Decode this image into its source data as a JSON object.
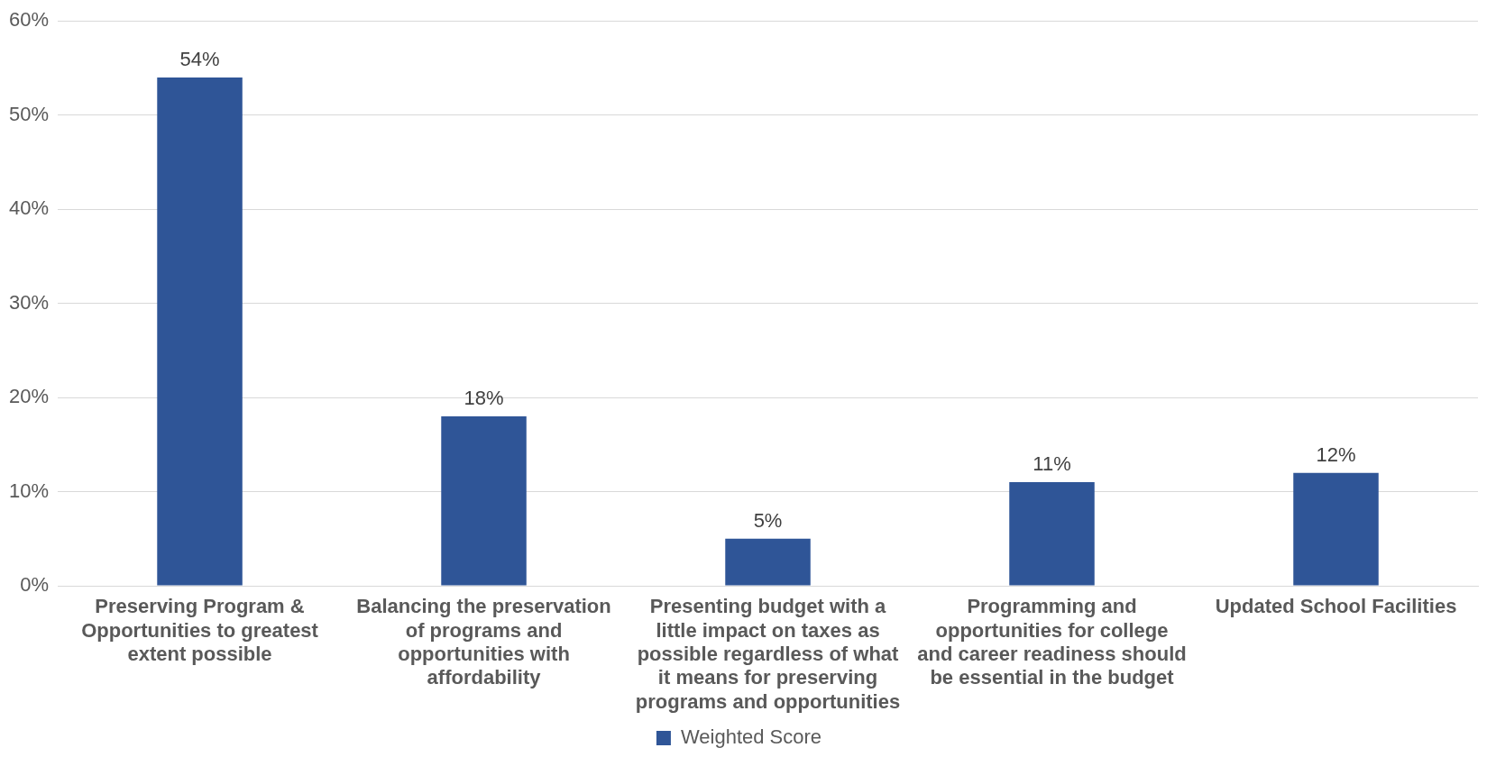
{
  "chart_data": {
    "type": "bar",
    "categories": [
      "Preserving Program & Opportunities to greatest extent possible",
      "Balancing the preservation of programs and opportunities with affordability",
      "Presenting budget with a little impact on taxes as possible regardless of what it means for preserving programs and opportunities",
      "Programming and opportunities for college and career readiness should be essential in the budget",
      "Updated School Facilities"
    ],
    "series": [
      {
        "name": "Weighted Score",
        "color": "#2f5597",
        "values": [
          54,
          18,
          5,
          11,
          12
        ]
      }
    ],
    "value_labels": [
      "54%",
      "18%",
      "5%",
      "11%",
      "12%"
    ],
    "ylim": [
      0,
      60
    ],
    "yticks": [
      {
        "value": 0,
        "label": "0%"
      },
      {
        "value": 10,
        "label": "10%"
      },
      {
        "value": 20,
        "label": "20%"
      },
      {
        "value": 30,
        "label": "30%"
      },
      {
        "value": 40,
        "label": "40%"
      },
      {
        "value": 50,
        "label": "50%"
      },
      {
        "value": 60,
        "label": "60%"
      }
    ],
    "grid": "y",
    "legend": "bottom"
  }
}
